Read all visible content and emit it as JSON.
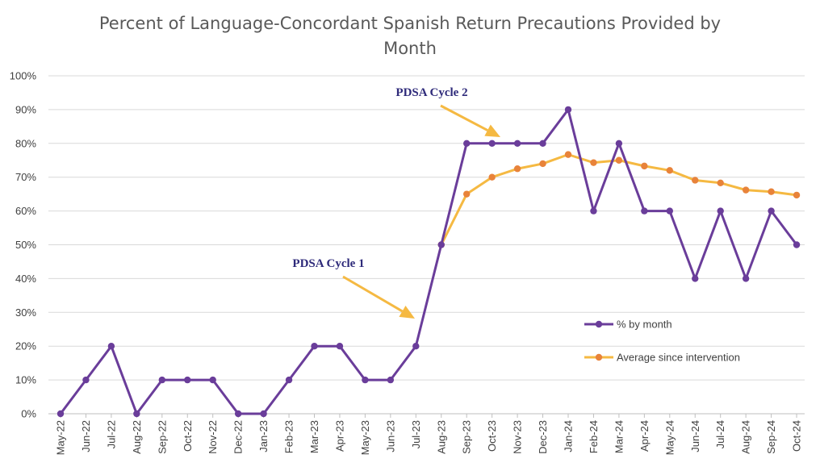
{
  "chart_data": {
    "type": "line",
    "title_line1": "Percent of Language-Concordant Spanish Return Precautions Provided by",
    "title_line2": "Month",
    "xlabel": "",
    "ylabel": "",
    "ylim": [
      0,
      100
    ],
    "y_ticks": [
      "0%",
      "10%",
      "20%",
      "30%",
      "40%",
      "50%",
      "60%",
      "70%",
      "80%",
      "90%",
      "100%"
    ],
    "grid": true,
    "legend_position": "bottom-right",
    "categories": [
      "May-22",
      "Jun-22",
      "Jul-22",
      "Aug-22",
      "Sep-22",
      "Oct-22",
      "Nov-22",
      "Dec-22",
      "Jan-23",
      "Feb-23",
      "Mar-23",
      "Apr-23",
      "May-23",
      "Jun-23",
      "Jul-23",
      "Aug-23",
      "Sep-23",
      "Oct-23",
      "Nov-23",
      "Dec-23",
      "Jan-24",
      "Feb-24",
      "Mar-24",
      "Apr-24",
      "May-24",
      "Jun-24",
      "Jul-24",
      "Aug-24",
      "Sep-24",
      "Oct-24"
    ],
    "series": [
      {
        "name": "% by month",
        "color": "#6a3d9a",
        "values": [
          0,
          10,
          20,
          0,
          10,
          10,
          10,
          0,
          0,
          10,
          20,
          20,
          10,
          10,
          20,
          50,
          80,
          80,
          80,
          80,
          90,
          60,
          80,
          60,
          60,
          40,
          60,
          40,
          60,
          50
        ]
      },
      {
        "name": "Average since intervention",
        "color": "#f5b942",
        "marker_color": "#e8833a",
        "values": [
          null,
          null,
          null,
          null,
          null,
          null,
          null,
          null,
          null,
          null,
          null,
          null,
          null,
          null,
          null,
          50,
          65,
          70,
          72.5,
          74,
          76.7,
          74.3,
          75,
          73.3,
          72,
          69.1,
          68.3,
          66.2,
          65.7,
          64.7
        ]
      }
    ],
    "annotations": [
      {
        "label": "PDSA Cycle 1",
        "arrow_color": "#f5b942"
      },
      {
        "label": "PDSA Cycle 2",
        "arrow_color": "#f5b942"
      }
    ]
  }
}
